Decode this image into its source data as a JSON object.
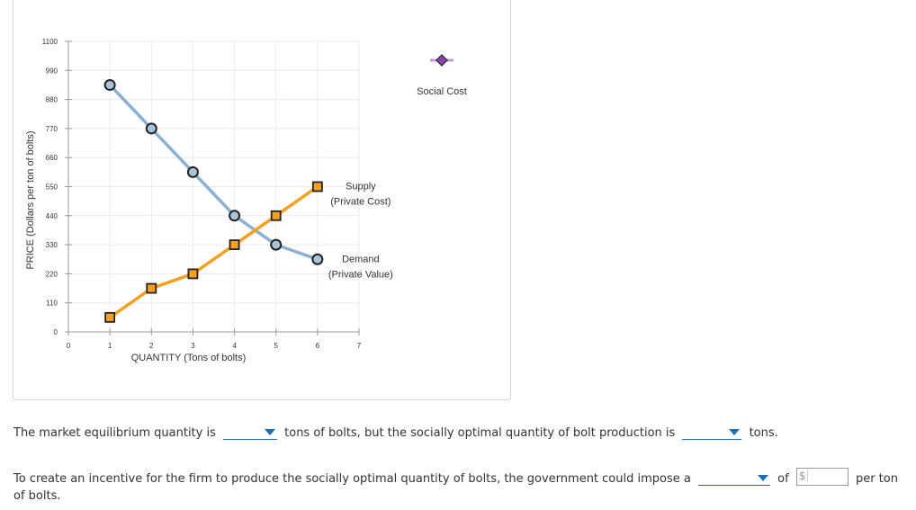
{
  "chart_data": {
    "type": "line",
    "xlabel": "QUANTITY (Tons of bolts)",
    "ylabel": "PRICE (Dollars per ton of bolts)",
    "xlim": [
      0,
      7
    ],
    "ylim": [
      0,
      1100
    ],
    "x_ticks": [
      "0",
      "1",
      "2",
      "3",
      "4",
      "5",
      "6",
      "7"
    ],
    "y_ticks": [
      "0",
      "110",
      "220",
      "330",
      "440",
      "550",
      "660",
      "770",
      "880",
      "990",
      "1100"
    ],
    "grid": true,
    "series": [
      {
        "name": "Demand (Private Value)",
        "label_lines": [
          "Demand",
          "(Private Value)"
        ],
        "marker": "circle",
        "line_color": "#8ab0d4",
        "marker_fill": "#a9c3dc",
        "x": [
          1,
          2,
          3,
          4,
          5,
          6
        ],
        "y": [
          935,
          770,
          605,
          440,
          330,
          275
        ]
      },
      {
        "name": "Supply (Private Cost)",
        "label_lines": [
          "Supply",
          "(Private Cost)"
        ],
        "marker": "square",
        "line_color": "#f5a020",
        "marker_fill": "#f5a020",
        "x": [
          1,
          2,
          3,
          4,
          5,
          6
        ],
        "y": [
          55,
          165,
          220,
          330,
          440,
          550
        ]
      }
    ],
    "legend": {
      "items": [
        {
          "name": "Social Cost",
          "marker": "diamond",
          "color": "#8e44ad",
          "line_color": "#c39bd3"
        }
      ]
    }
  },
  "question": {
    "line1_before": "The market equilibrium quantity is",
    "line1_middle": "tons of bolts, but the socially optimal quantity of bolt production is",
    "line1_after": "tons.",
    "line2_before": "To create an incentive for the firm to produce the socially optimal quantity of bolts, the government could impose a",
    "line2_of": "of",
    "line2_dollar": "$",
    "line2_after": "per ton",
    "line3": "of bolts."
  },
  "colors": {
    "accent": "#1a6fb5"
  }
}
